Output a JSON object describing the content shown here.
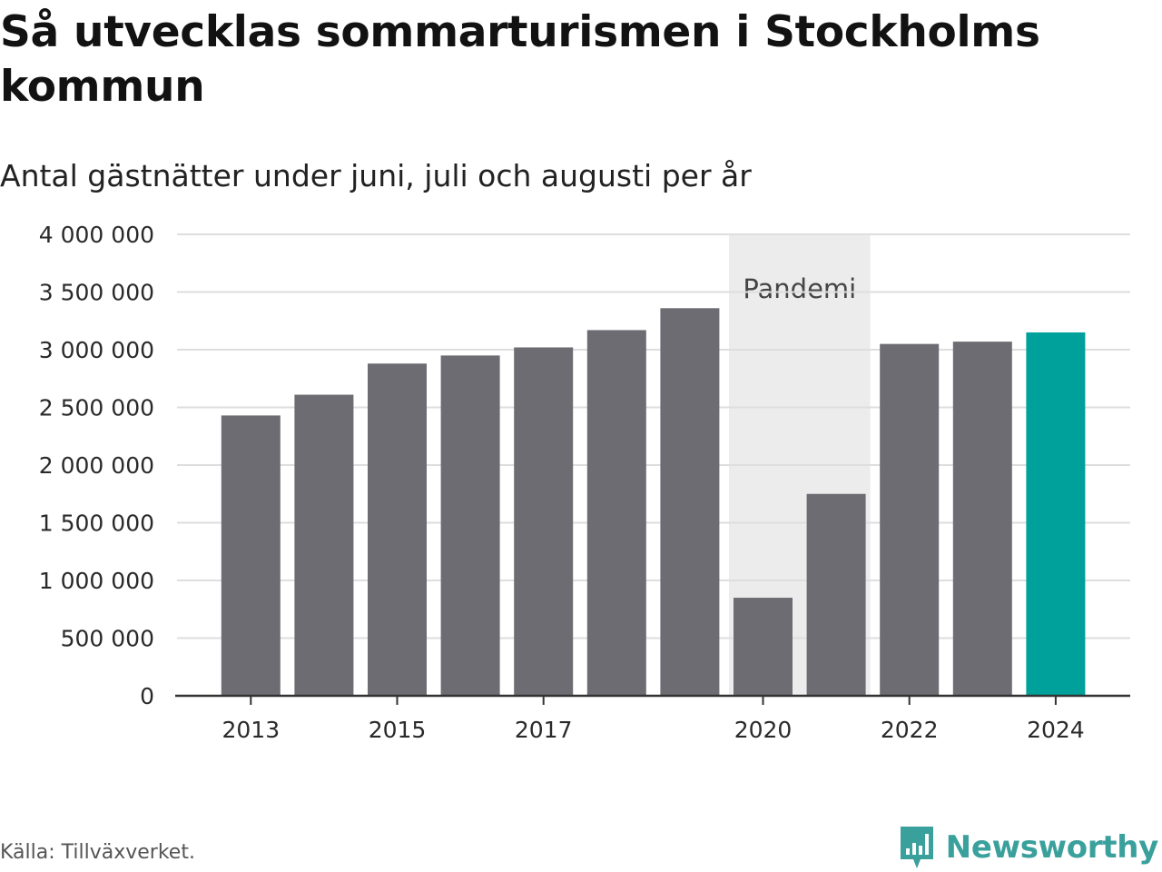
{
  "title": "Så utvecklas sommarturismen i Stockholms kommun",
  "subtitle": "Antal gästnätter under juni, juli och augusti per år",
  "source": "Källa: Tillväxverket.",
  "brand": {
    "name": "Newsworthy",
    "icon": "newsworthy-logo-icon",
    "color": "#3aa09c"
  },
  "chart_data": {
    "type": "bar",
    "categories": [
      "2013",
      "2014",
      "2015",
      "2016",
      "2017",
      "2018",
      "2019",
      "2020",
      "2021",
      "2022",
      "2023",
      "2024"
    ],
    "values": [
      2430000,
      2610000,
      2880000,
      2950000,
      3020000,
      3170000,
      3360000,
      850000,
      1750000,
      3050000,
      3070000,
      3150000
    ],
    "x_tick_labels": [
      "2013",
      "2015",
      "2017",
      "2020",
      "2022",
      "2024"
    ],
    "y_ticks": [
      0,
      500000,
      1000000,
      1500000,
      2000000,
      2500000,
      3000000,
      3500000,
      4000000
    ],
    "y_tick_labels": [
      "0",
      "500 000",
      "1 000 000",
      "1 500 000",
      "2 000 000",
      "2 500 000",
      "3 000 000",
      "3 500 000",
      "4 000 000"
    ],
    "ylim": [
      0,
      4000000
    ],
    "grid": true,
    "highlight": {
      "category": "2024",
      "color": "#00a19a"
    },
    "bar_color": "#6d6c72",
    "band": {
      "label": "Pandemi",
      "from": "2020",
      "to": "2021",
      "color": "#ececec"
    },
    "xlabel": "",
    "ylabel": ""
  }
}
